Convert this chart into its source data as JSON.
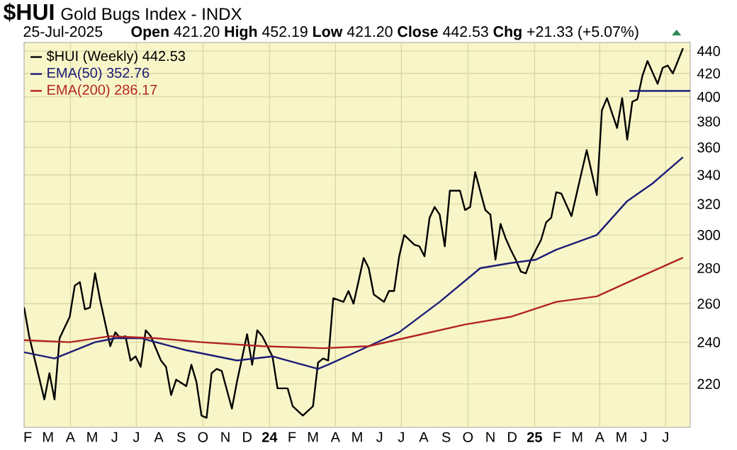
{
  "chart_data": {
    "type": "line",
    "title": "$HUI",
    "subtitle": "Gold Bugs Index - INDX",
    "annotations": [
      "25-Jul-2025",
      "**Open** 421.20 **High** 452.19 **Low** 421.20 **Close** 442.53 **Chg** +21.33 (+5.07%)"
    ],
    "log": "y",
    "grid": true,
    "legend": "top left",
    "line_style": "solid",
    "xlim": [
      "2023-01-27",
      "2025-08-04"
    ],
    "ylim": [
      201,
      448
    ],
    "yticks": [
      220,
      240,
      260,
      280,
      300,
      320,
      340,
      360,
      380,
      400,
      420,
      440
    ],
    "xticks": [
      {
        "value": "2023-02-01",
        "label": "F"
      },
      {
        "value": "2023-03-01",
        "label": "M"
      },
      {
        "value": "2023-04-01",
        "label": "A"
      },
      {
        "value": "2023-05-01",
        "label": "M"
      },
      {
        "value": "2023-06-01",
        "label": "J"
      },
      {
        "value": "2023-07-01",
        "label": "J"
      },
      {
        "value": "2023-08-01",
        "label": "A"
      },
      {
        "value": "2023-09-01",
        "label": "S"
      },
      {
        "value": "2023-10-01",
        "label": "O"
      },
      {
        "value": "2023-11-01",
        "label": "N"
      },
      {
        "value": "2023-12-01",
        "label": "D"
      },
      {
        "value": "2024-01-01",
        "label": "24"
      },
      {
        "value": "2024-02-01",
        "label": "F"
      },
      {
        "value": "2024-03-01",
        "label": "M"
      },
      {
        "value": "2024-04-01",
        "label": "A"
      },
      {
        "value": "2024-05-01",
        "label": "M"
      },
      {
        "value": "2024-06-01",
        "label": "J"
      },
      {
        "value": "2024-07-01",
        "label": "J"
      },
      {
        "value": "2024-08-01",
        "label": "A"
      },
      {
        "value": "2024-09-01",
        "label": "S"
      },
      {
        "value": "2024-10-01",
        "label": "O"
      },
      {
        "value": "2024-11-01",
        "label": "N"
      },
      {
        "value": "2024-12-01",
        "label": "D"
      },
      {
        "value": "2025-01-01",
        "label": "25"
      },
      {
        "value": "2025-02-01",
        "label": "F"
      },
      {
        "value": "2025-03-01",
        "label": "M"
      },
      {
        "value": "2025-04-01",
        "label": "A"
      },
      {
        "value": "2025-05-01",
        "label": "M"
      },
      {
        "value": "2025-06-01",
        "label": "J"
      },
      {
        "value": "2025-07-01",
        "label": "J"
      }
    ],
    "series": [
      {
        "name": "$HUI (Weekly) 442.53",
        "color": "#000000",
        "x": [
          "2023-01-27",
          "2023-02-03",
          "2023-02-24",
          "2023-03-03",
          "2023-03-10",
          "2023-03-17",
          "2023-03-31",
          "2023-04-07",
          "2023-04-14",
          "2023-04-21",
          "2023-04-28",
          "2023-05-05",
          "2023-05-12",
          "2023-05-26",
          "2023-06-02",
          "2023-06-09",
          "2023-06-16",
          "2023-06-23",
          "2023-06-30",
          "2023-07-07",
          "2023-07-14",
          "2023-07-21",
          "2023-08-04",
          "2023-08-11",
          "2023-08-18",
          "2023-08-25",
          "2023-09-08",
          "2023-09-15",
          "2023-09-22",
          "2023-09-29",
          "2023-10-06",
          "2023-10-13",
          "2023-10-20",
          "2023-10-27",
          "2023-11-10",
          "2023-11-17",
          "2023-12-01",
          "2023-12-08",
          "2023-12-15",
          "2023-12-22",
          "2024-01-05",
          "2024-01-12",
          "2024-01-26",
          "2024-02-02",
          "2024-02-16",
          "2024-03-01",
          "2024-03-08",
          "2024-03-15",
          "2024-03-22",
          "2024-03-29",
          "2024-04-12",
          "2024-04-19",
          "2024-04-26",
          "2024-05-10",
          "2024-05-17",
          "2024-05-24",
          "2024-06-07",
          "2024-06-14",
          "2024-06-21",
          "2024-06-28",
          "2024-07-05",
          "2024-07-19",
          "2024-07-26",
          "2024-08-02",
          "2024-08-09",
          "2024-08-16",
          "2024-08-23",
          "2024-08-30",
          "2024-09-06",
          "2024-09-20",
          "2024-09-27",
          "2024-10-04",
          "2024-10-11",
          "2024-10-25",
          "2024-11-01",
          "2024-11-08",
          "2024-11-15",
          "2024-11-22",
          "2024-11-29",
          "2024-12-06",
          "2024-12-13",
          "2024-12-20",
          "2024-12-27",
          "2025-01-03",
          "2025-01-10",
          "2025-01-17",
          "2025-01-24",
          "2025-01-31",
          "2025-02-07",
          "2025-02-21",
          "2025-03-07",
          "2025-03-14",
          "2025-03-28",
          "2025-04-04",
          "2025-04-11",
          "2025-04-25",
          "2025-05-02",
          "2025-05-09",
          "2025-05-16",
          "2025-05-23",
          "2025-05-30",
          "2025-06-06",
          "2025-06-20",
          "2025-06-27",
          "2025-07-04",
          "2025-07-11",
          "2025-07-25"
        ],
        "values": [
          258,
          243,
          213,
          225,
          213,
          242,
          253,
          270,
          272,
          257,
          258,
          277,
          262,
          238,
          245,
          242,
          243,
          231,
          233,
          228,
          246,
          243,
          231,
          228,
          215,
          222,
          219,
          229,
          221,
          206,
          205,
          225,
          227,
          226,
          209,
          221,
          244,
          229,
          246,
          243,
          233,
          218,
          218,
          210,
          206,
          210,
          230,
          232,
          231,
          263,
          261,
          267,
          260,
          286,
          280,
          265,
          261,
          267,
          267,
          287,
          300,
          294,
          293,
          287,
          311,
          318,
          313,
          293,
          329,
          329,
          316,
          318,
          342,
          316,
          313,
          285,
          307,
          298,
          291,
          285,
          278,
          277,
          285,
          291,
          297,
          308,
          311,
          328,
          327,
          312,
          342,
          358,
          326,
          389,
          399,
          375,
          399,
          366,
          396,
          398,
          418,
          431,
          411,
          425,
          427,
          420,
          442.53
        ]
      },
      {
        "name": "EMA(50) 352.76",
        "color": "#1c1c78",
        "x": [
          "2023-01-27",
          "2023-03-10",
          "2023-05-05",
          "2023-06-02",
          "2023-07-07",
          "2023-09-08",
          "2023-11-17",
          "2024-01-05",
          "2024-03-08",
          "2024-03-22",
          "2024-05-17",
          "2024-06-28",
          "2024-08-23",
          "2024-10-18",
          "2024-11-29",
          "2025-01-03",
          "2025-01-31",
          "2025-03-28",
          "2025-05-09",
          "2025-06-13",
          "2025-07-25"
        ],
        "values": [
          235,
          232,
          240,
          242,
          242,
          236,
          231,
          233,
          227,
          229,
          238,
          245,
          261,
          280,
          283,
          285,
          291,
          300,
          322,
          334,
          352.76
        ]
      },
      {
        "name": "EMA(200) 286.17",
        "color": "#b22222",
        "x": [
          "2023-01-27",
          "2023-03-31",
          "2023-05-26",
          "2023-07-28",
          "2023-09-29",
          "2023-12-22",
          "2024-03-15",
          "2024-05-17",
          "2024-07-05",
          "2024-09-27",
          "2024-11-29",
          "2025-01-31",
          "2025-03-28",
          "2025-05-16",
          "2025-07-25"
        ],
        "values": [
          241,
          240,
          243,
          242,
          240,
          238,
          237,
          238,
          242,
          249,
          253,
          261,
          264,
          273,
          286.17
        ]
      },
      {
        "color": "#1c1c78",
        "x": [
          "2025-05-12",
          "2025-08-04"
        ],
        "values": [
          405,
          405
        ]
      }
    ]
  }
}
